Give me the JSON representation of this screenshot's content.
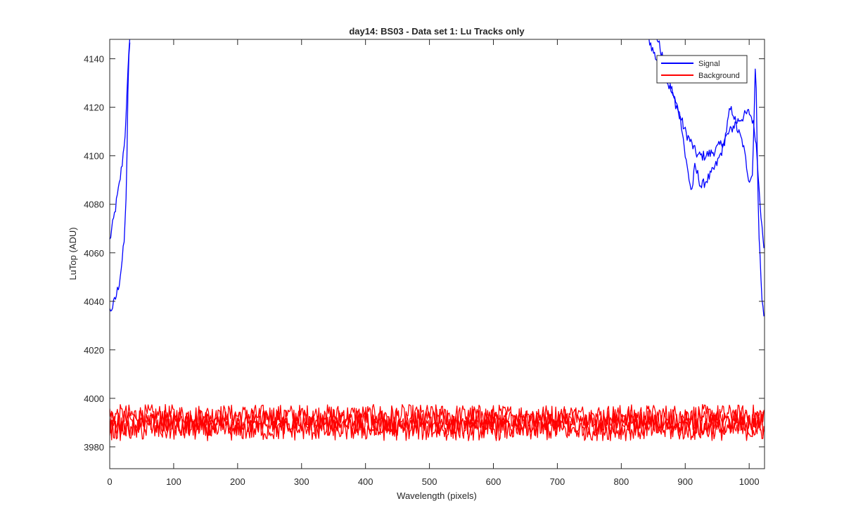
{
  "chart_data": {
    "type": "line",
    "title": "day14: BS03 - Data set 1: Lu Tracks only",
    "xlabel": "Wavelength (pixels)",
    "ylabel": "LuTop (ADU)",
    "xlim": [
      0,
      1024
    ],
    "ylim": [
      3971,
      4148
    ],
    "xticks": [
      0,
      100,
      200,
      300,
      400,
      500,
      600,
      700,
      800,
      900,
      1000
    ],
    "yticks": [
      3980,
      4000,
      4020,
      4040,
      4060,
      4080,
      4100,
      4120,
      4140
    ],
    "grid": false,
    "legend_position": "top-right",
    "series": [
      {
        "name": "Signal",
        "color": "#0000ff",
        "traces": [
          {
            "x": [
              0,
              5,
              10,
              15,
              20,
              25,
              28,
              30,
              32
            ],
            "y": [
              4065,
              4072,
              4080,
              4088,
              4098,
              4112,
              4130,
              4145,
              4150
            ]
          },
          {
            "x": [
              0,
              5,
              10,
              15,
              20,
              23,
              25,
              27,
              28,
              30,
              32
            ],
            "y": [
              4036,
              4038,
              4042,
              4048,
              4058,
              4066,
              4078,
              4100,
              4120,
              4140,
              4150
            ]
          },
          {
            "x": [
              840,
              845,
              850,
              855,
              860,
              870,
              880,
              890,
              900,
              910,
              915,
              920,
              930,
              940,
              950,
              960,
              970,
              980,
              990,
              1000,
              1005,
              1010,
              1015,
              1020,
              1024
            ],
            "y": [
              4150,
              4147,
              4143,
              4140,
              4138,
              4132,
              4125,
              4118,
              4110,
              4105,
              4102,
              4100,
              4100,
              4101,
              4103,
              4106,
              4110,
              4114,
              4116,
              4118,
              4115,
              4108,
              4090,
              4070,
              4058
            ]
          },
          {
            "x": [
              855,
              870,
              885,
              890,
              895,
              900,
              905,
              910,
              915,
              920,
              925,
              930,
              940,
              950,
              960,
              970,
              975,
              980,
              990,
              1000,
              1005,
              1010,
              1015,
              1020,
              1024
            ],
            "y": [
              4150,
              4135,
              4122,
              4118,
              4112,
              4100,
              4092,
              4085,
              4095,
              4092,
              4087,
              4089,
              4092,
              4097,
              4104,
              4119,
              4118,
              4112,
              4105,
              4090,
              4092,
              4140,
              4070,
              4040,
              4034
            ]
          }
        ]
      },
      {
        "name": "Background",
        "color": "#ff0000",
        "traces": [
          {
            "x": [
              0,
              1024
            ],
            "y": [
              3993,
              3993
            ]
          },
          {
            "x": [
              0,
              1024
            ],
            "y": [
              3991,
              3991
            ]
          },
          {
            "x": [
              0,
              1024
            ],
            "y": [
              3989,
              3989
            ]
          },
          {
            "x": [
              0,
              1024
            ],
            "y": [
              3987,
              3987
            ]
          }
        ],
        "noise_amplitude": 4.5
      }
    ]
  }
}
